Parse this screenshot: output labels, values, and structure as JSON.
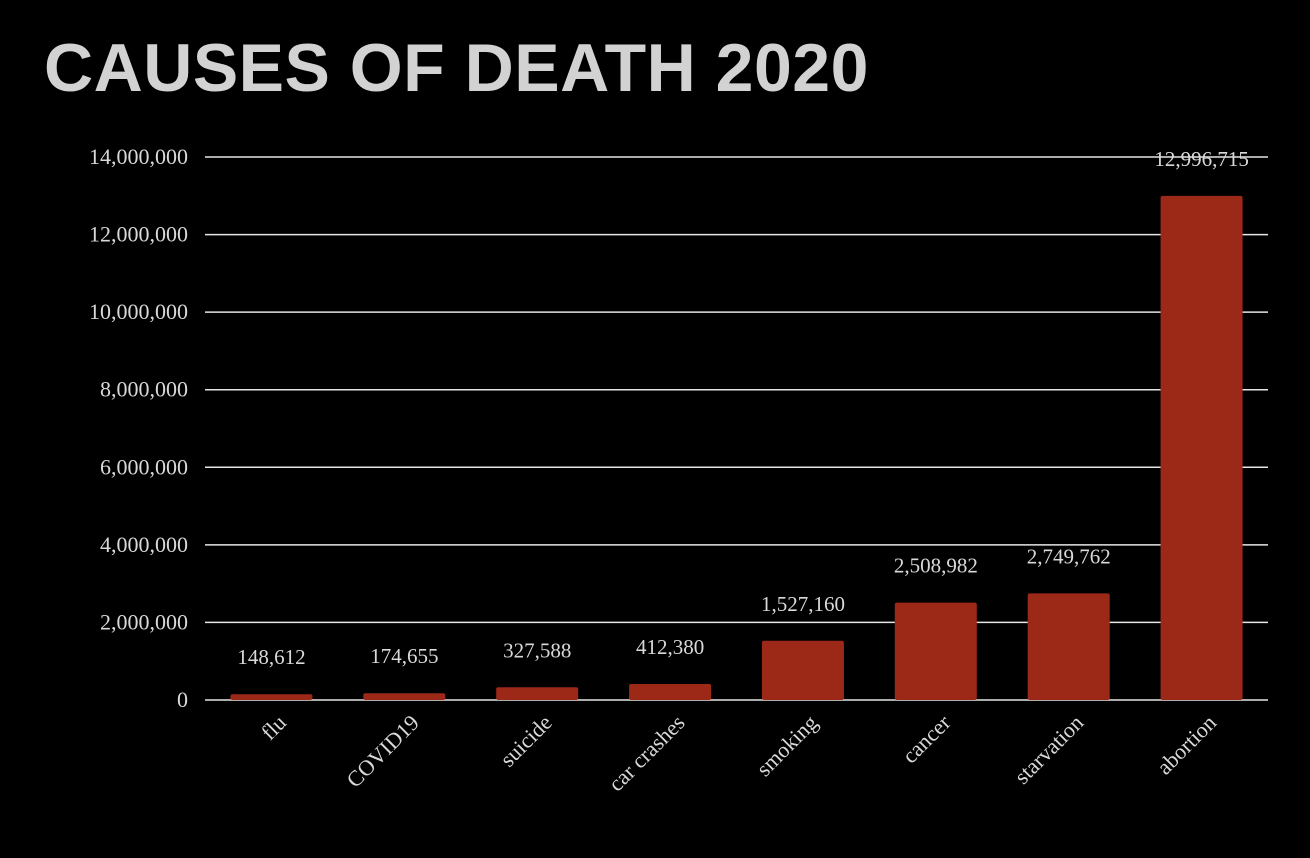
{
  "chart_data": {
    "type": "bar",
    "title": "CAUSES OF DEATH 2020",
    "xlabel": "",
    "ylabel": "",
    "categories": [
      "flu",
      "COVID19",
      "suicide",
      "car crashes",
      "smoking",
      "cancer",
      "starvation",
      "abortion"
    ],
    "values": [
      148612,
      174655,
      327588,
      412380,
      1527160,
      2508982,
      2749762,
      12996715
    ],
    "data_labels": [
      "148,612",
      "174,655",
      "327,588",
      "412,380",
      "1,527,160",
      "2,508,982",
      "2,749,762",
      "12,996,715"
    ],
    "ylim": [
      0,
      14000000
    ],
    "y_ticks": [
      0,
      2000000,
      4000000,
      6000000,
      8000000,
      10000000,
      12000000,
      14000000
    ],
    "y_tick_labels": [
      "0",
      "2,000,000",
      "4,000,000",
      "6,000,000",
      "8,000,000",
      "10,000,000",
      "12,000,000",
      "14,000,000"
    ],
    "grid": true,
    "legend": "none",
    "bar_color": "#9c2818",
    "background_color": "#000000",
    "text_color": "#d9d9d9",
    "title_color": "#d2d2d2"
  }
}
